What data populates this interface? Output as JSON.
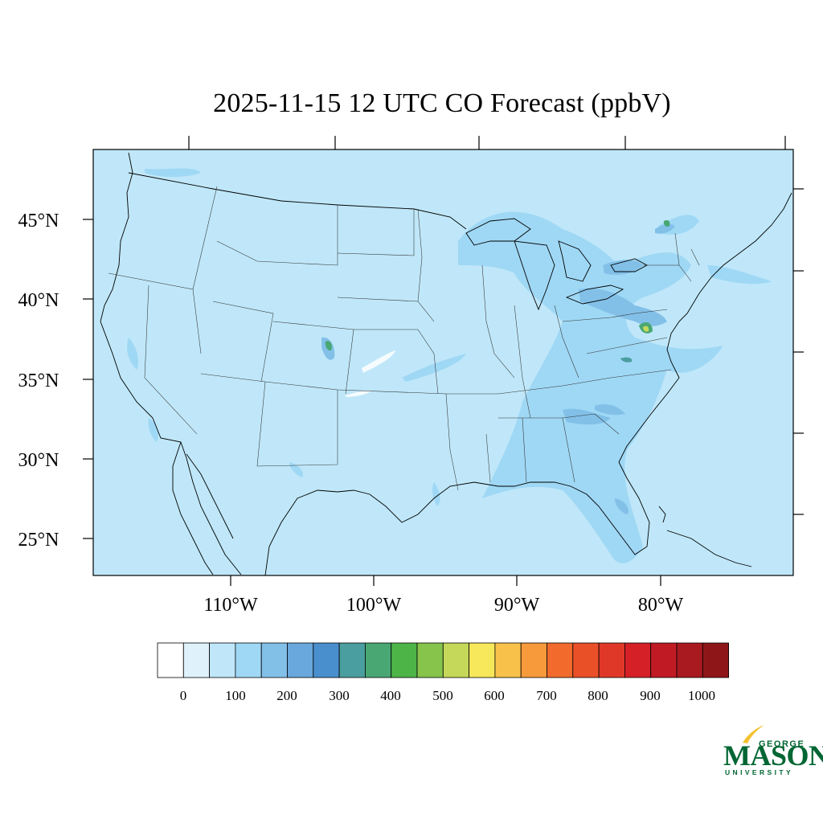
{
  "title": "2025-11-15 12 UTC CO Forecast (ppbV)",
  "lat_labels": [
    "45°N",
    "40°N",
    "35°N",
    "30°N",
    "25°N"
  ],
  "lon_labels": [
    "110°W",
    "100°W",
    "90°W",
    "80°W"
  ],
  "colorbar": {
    "labels": [
      "0",
      "100",
      "200",
      "300",
      "400",
      "500",
      "600",
      "700",
      "800",
      "900",
      "1000"
    ],
    "colors": [
      "#ffffff",
      "#dff2fb",
      "#bfe7f9",
      "#9fd8f5",
      "#82c0e8",
      "#68a8dc",
      "#4a8fcd",
      "#4b9ea0",
      "#49a774",
      "#4db448",
      "#86c44c",
      "#c5d85a",
      "#f6e85a",
      "#f8c24a",
      "#f69a3c",
      "#f26b2c",
      "#ea5028",
      "#e03828",
      "#d52028",
      "#c01b24",
      "#a91a20",
      "#8e1618"
    ]
  },
  "map": {
    "background": "#bfe7f9",
    "enhanced": "#9fd8f5",
    "moderate": "#82c0e8",
    "high": "#49a774",
    "peak": "#c5d85a"
  },
  "logo": {
    "top": "GEORGE",
    "main": "MASON",
    "bottom": "UNIVERSITY",
    "color": "#006633",
    "accent": "#f2c230"
  }
}
